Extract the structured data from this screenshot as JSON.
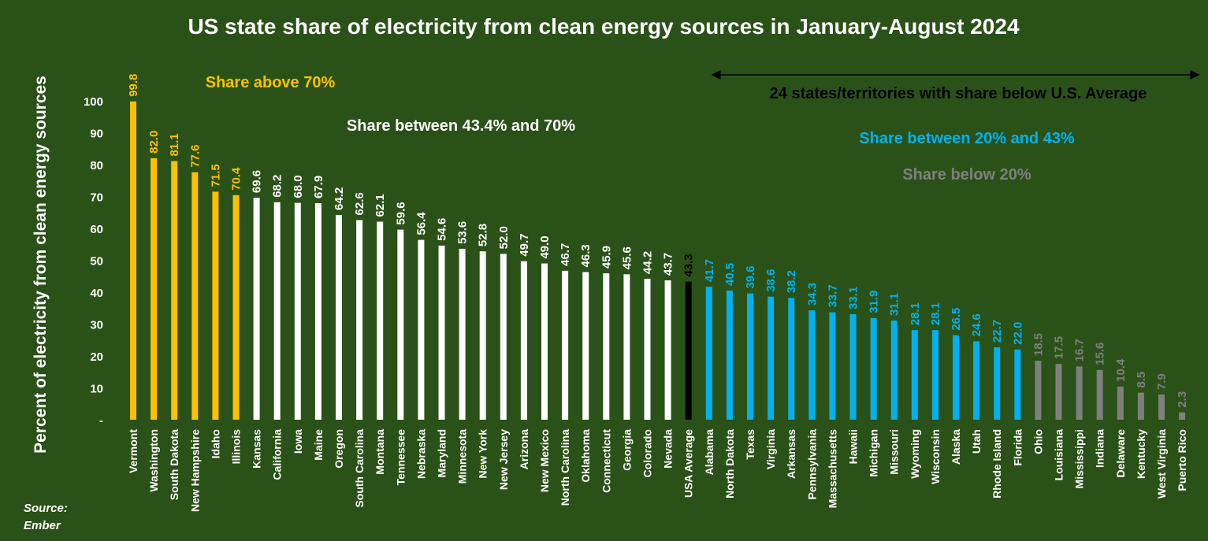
{
  "chart_data": {
    "type": "bar",
    "title": "US state share of electricity from clean energy sources in January-August 2024",
    "ylabel": "Percent of electricity from clean energy sources",
    "xlabel": "",
    "ylim": [
      0,
      100
    ],
    "yticks": [
      "-",
      "10",
      "20",
      "30",
      "40",
      "50",
      "60",
      "70",
      "80",
      "90",
      "100"
    ],
    "grid": false,
    "categories": [
      "Vermont",
      "Washington",
      "South Dakota",
      "New Hampshire",
      "Idaho",
      "Illinois",
      "Kansas",
      "California",
      "Iowa",
      "Maine",
      "Oregon",
      "South Carolina",
      "Montana",
      "Tennessee",
      "Nebraska",
      "Maryland",
      "Minnesota",
      "New York",
      "New Jersey",
      "Arizona",
      "New Mexico",
      "North Carolina",
      "Oklahoma",
      "Connecticut",
      "Georgia",
      "Colorado",
      "Nevada",
      "USA Average",
      "Alabama",
      "North Dakota",
      "Texas",
      "Virginia",
      "Arkansas",
      "Pennsylvania",
      "Massachusetts",
      "Hawaii",
      "Michigan",
      "Missouri",
      "Wyoming",
      "Wisconsin",
      "Alaska",
      "Utah",
      "Rhode Island",
      "Florida",
      "Ohio",
      "Louisiana",
      "Mississippi",
      "Indiana",
      "Delaware",
      "Kentucky",
      "West Virginia",
      "Puerto Rico"
    ],
    "values": [
      99.8,
      82.0,
      81.1,
      77.6,
      71.5,
      70.4,
      69.6,
      68.2,
      68.0,
      67.9,
      64.2,
      62.6,
      62.1,
      59.6,
      56.4,
      54.6,
      53.6,
      52.8,
      52.0,
      49.7,
      49.0,
      46.7,
      46.3,
      45.9,
      45.6,
      44.2,
      43.7,
      43.3,
      41.7,
      40.5,
      39.6,
      38.6,
      38.2,
      34.3,
      33.7,
      33.1,
      31.9,
      31.1,
      28.1,
      28.1,
      26.5,
      24.6,
      22.7,
      22.0,
      18.5,
      17.5,
      16.7,
      15.6,
      10.4,
      8.5,
      7.9,
      2.3
    ],
    "value_labels": [
      "99.8",
      "82.0",
      "81.1",
      "77.6",
      "71.5",
      "70.4",
      "69.6",
      "68.2",
      "68.0",
      "67.9",
      "64.2",
      "62.6",
      "62.1",
      "59.6",
      "56.4",
      "54.6",
      "53.6",
      "52.8",
      "52.0",
      "49.7",
      "49.0",
      "46.7",
      "46.3",
      "45.9",
      "45.6",
      "44.2",
      "43.7",
      "43.3",
      "41.7",
      "40.5",
      "39.6",
      "38.6",
      "38.2",
      "34.3",
      "33.7",
      "33.1",
      "31.9",
      "31.1",
      "28.1",
      "28.1",
      "26.5",
      "24.6",
      "22.7",
      "22.0",
      "18.5",
      "17.5",
      "16.7",
      "15.6",
      "10.4",
      "8.5",
      "7.9",
      "2.3"
    ],
    "groups": [
      "above",
      "above",
      "above",
      "above",
      "above",
      "above",
      "mid",
      "mid",
      "mid",
      "mid",
      "mid",
      "mid",
      "mid",
      "mid",
      "mid",
      "mid",
      "mid",
      "mid",
      "mid",
      "mid",
      "mid",
      "mid",
      "mid",
      "mid",
      "mid",
      "mid",
      "mid",
      "avg",
      "low",
      "low",
      "low",
      "low",
      "low",
      "low",
      "low",
      "low",
      "low",
      "low",
      "low",
      "low",
      "low",
      "low",
      "low",
      "low",
      "below",
      "below",
      "below",
      "below",
      "below",
      "below",
      "below",
      "below"
    ],
    "colors": {
      "background": "#2a5218",
      "above": "#ffc000",
      "mid": "#ffffff",
      "avg": "#000000",
      "low": "#00b0f0",
      "below": "#7f7f7f",
      "text": "#ffffff",
      "annotation_dark": "#000000"
    },
    "legend_annotations": [
      {
        "text": "Share above 70%",
        "group": "above"
      },
      {
        "text": "Share between 43.4% and 70%",
        "group": "mid"
      },
      {
        "text": "Share between 20% and 43%",
        "group": "low"
      },
      {
        "text": "Share below 20%",
        "group": "below"
      }
    ],
    "range_annotation": "24 states/territories with share below U.S. Average",
    "source": [
      "Source:",
      "Ember"
    ]
  }
}
